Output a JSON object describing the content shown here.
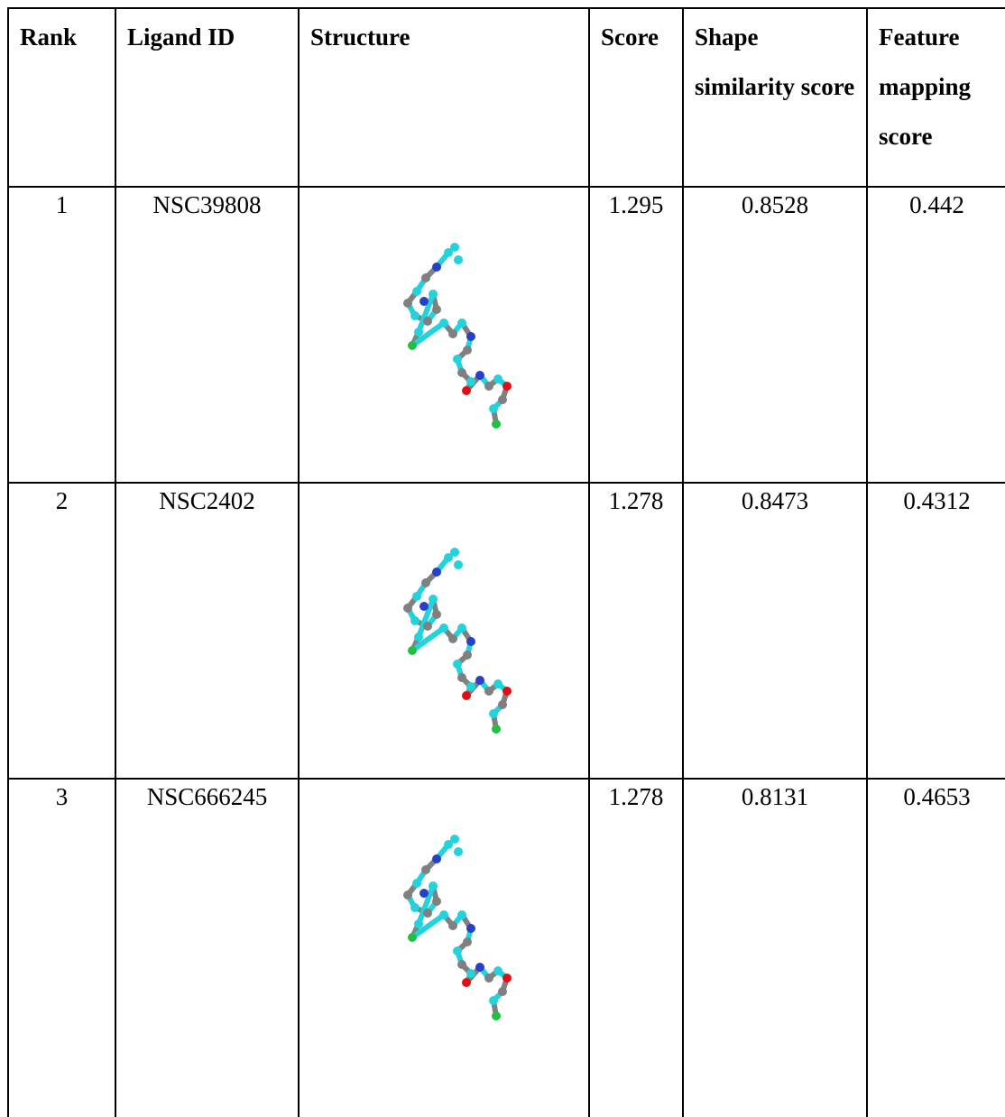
{
  "table": {
    "headers": [
      "Rank",
      "Ligand ID",
      "Structure",
      "Score",
      "Shape similarity score",
      "Feature mapping score"
    ],
    "rows": [
      [
        "1",
        "NSC39808",
        "1.295",
        "0.8528",
        "0.442"
      ],
      [
        "2",
        "NSC2402",
        "1.278",
        "0.8473",
        "0.4312"
      ],
      [
        "3",
        "NSC666245",
        "1.278",
        "0.8131",
        "0.4653"
      ]
    ]
  }
}
